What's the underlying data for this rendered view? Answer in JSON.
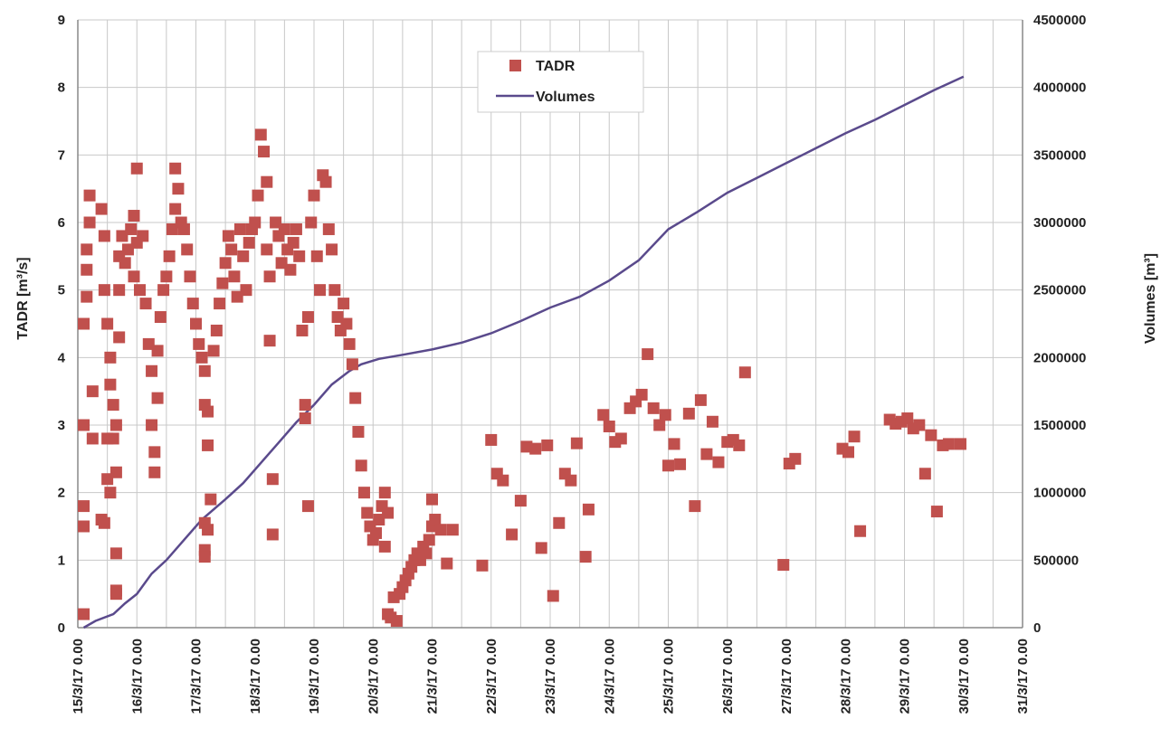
{
  "chart_data": {
    "type": "scatter+line",
    "x_axis": {
      "ticks": [
        "15/3/17 0.00",
        "16/3/17 0.00",
        "17/3/17 0.00",
        "18/3/17 0.00",
        "19/3/17 0.00",
        "20/3/17 0.00",
        "21/3/17 0.00",
        "22/3/17 0.00",
        "23/3/17 0.00",
        "24/3/17 0.00",
        "25/3/17 0.00",
        "26/3/17 0.00",
        "27/3/17 0.00",
        "28/3/17 0.00",
        "29/3/17 0.00",
        "30/3/17 0.00",
        "31/3/17 0.00"
      ],
      "unit": "days",
      "range": [
        0,
        16
      ]
    },
    "y_left": {
      "label": "TADR [m³/s]",
      "range": [
        0,
        9
      ],
      "ticks": [
        "0",
        "1",
        "2",
        "3",
        "4",
        "5",
        "6",
        "7",
        "8",
        "9"
      ]
    },
    "y_right": {
      "label": "Volumes [m³]",
      "range": [
        0,
        4500000
      ],
      "ticks": [
        "0",
        "500000",
        "1000000",
        "1500000",
        "2000000",
        "2500000",
        "3000000",
        "3500000",
        "4000000",
        "4500000"
      ]
    },
    "grid": true,
    "legend": {
      "placement": "top-center",
      "entries": [
        "TADR",
        "Volumes"
      ]
    },
    "colors": {
      "tadr": "#c0504d",
      "volumes": "#5a4a8c",
      "grid": "#c8c8c8"
    },
    "series": [
      {
        "name": "TADR",
        "kind": "scatter",
        "axis": "left",
        "points": [
          [
            0.1,
            0.2
          ],
          [
            0.1,
            1.5
          ],
          [
            0.1,
            1.8
          ],
          [
            0.1,
            3.0
          ],
          [
            0.1,
            4.5
          ],
          [
            0.15,
            4.9
          ],
          [
            0.15,
            5.3
          ],
          [
            0.15,
            5.6
          ],
          [
            0.2,
            6.0
          ],
          [
            0.2,
            6.4
          ],
          [
            0.25,
            3.5
          ],
          [
            0.25,
            2.8
          ],
          [
            0.4,
            1.6
          ],
          [
            0.45,
            1.55
          ],
          [
            0.4,
            6.2
          ],
          [
            0.45,
            5.8
          ],
          [
            0.45,
            5.0
          ],
          [
            0.5,
            4.5
          ],
          [
            0.5,
            2.8
          ],
          [
            0.5,
            2.2
          ],
          [
            0.55,
            3.6
          ],
          [
            0.55,
            4.0
          ],
          [
            0.55,
            2.0
          ],
          [
            0.6,
            2.8
          ],
          [
            0.6,
            3.3
          ],
          [
            0.65,
            3.0
          ],
          [
            0.65,
            2.3
          ],
          [
            0.65,
            1.1
          ],
          [
            0.65,
            0.55
          ],
          [
            0.65,
            0.5
          ],
          [
            0.7,
            4.3
          ],
          [
            0.7,
            5.0
          ],
          [
            0.7,
            5.5
          ],
          [
            0.75,
            5.8
          ],
          [
            0.8,
            5.4
          ],
          [
            0.85,
            5.6
          ],
          [
            0.9,
            5.9
          ],
          [
            0.95,
            5.2
          ],
          [
            0.95,
            6.1
          ],
          [
            1.0,
            6.8
          ],
          [
            1.0,
            5.7
          ],
          [
            1.05,
            5.0
          ],
          [
            1.1,
            5.8
          ],
          [
            1.15,
            4.8
          ],
          [
            1.2,
            4.2
          ],
          [
            1.25,
            3.8
          ],
          [
            1.25,
            3.0
          ],
          [
            1.3,
            2.6
          ],
          [
            1.3,
            2.3
          ],
          [
            1.35,
            3.4
          ],
          [
            1.35,
            4.1
          ],
          [
            1.4,
            4.6
          ],
          [
            1.45,
            5.0
          ],
          [
            1.5,
            5.2
          ],
          [
            1.55,
            5.5
          ],
          [
            1.6,
            5.9
          ],
          [
            1.65,
            6.2
          ],
          [
            1.65,
            6.8
          ],
          [
            1.7,
            6.5
          ],
          [
            1.75,
            6.0
          ],
          [
            1.8,
            5.9
          ],
          [
            1.85,
            5.6
          ],
          [
            1.9,
            5.2
          ],
          [
            1.95,
            4.8
          ],
          [
            2.0,
            4.5
          ],
          [
            2.05,
            4.2
          ],
          [
            2.1,
            4.0
          ],
          [
            2.15,
            3.8
          ],
          [
            2.15,
            3.3
          ],
          [
            2.2,
            3.2
          ],
          [
            2.2,
            2.7
          ],
          [
            2.15,
            1.55
          ],
          [
            2.2,
            1.45
          ],
          [
            2.15,
            1.15
          ],
          [
            2.15,
            1.05
          ],
          [
            2.25,
            1.9
          ],
          [
            2.3,
            4.1
          ],
          [
            2.35,
            4.4
          ],
          [
            2.4,
            4.8
          ],
          [
            2.45,
            5.1
          ],
          [
            2.5,
            5.4
          ],
          [
            2.55,
            5.8
          ],
          [
            2.6,
            5.6
          ],
          [
            2.65,
            5.2
          ],
          [
            2.7,
            4.9
          ],
          [
            2.75,
            5.9
          ],
          [
            2.8,
            5.5
          ],
          [
            2.85,
            5.0
          ],
          [
            2.9,
            5.7
          ],
          [
            2.95,
            5.9
          ],
          [
            3.0,
            6.0
          ],
          [
            3.05,
            6.4
          ],
          [
            3.1,
            7.3
          ],
          [
            3.15,
            7.05
          ],
          [
            3.2,
            6.6
          ],
          [
            3.2,
            5.6
          ],
          [
            3.25,
            5.2
          ],
          [
            3.25,
            4.25
          ],
          [
            3.3,
            2.2
          ],
          [
            3.3,
            1.38
          ],
          [
            3.35,
            6.0
          ],
          [
            3.4,
            5.8
          ],
          [
            3.45,
            5.4
          ],
          [
            3.5,
            5.9
          ],
          [
            3.55,
            5.6
          ],
          [
            3.6,
            5.3
          ],
          [
            3.65,
            5.7
          ],
          [
            3.7,
            5.9
          ],
          [
            3.75,
            5.5
          ],
          [
            3.8,
            4.4
          ],
          [
            3.85,
            3.3
          ],
          [
            3.85,
            3.1
          ],
          [
            3.9,
            1.8
          ],
          [
            3.9,
            4.6
          ],
          [
            3.95,
            6.0
          ],
          [
            4.0,
            6.4
          ],
          [
            4.05,
            5.5
          ],
          [
            4.1,
            5.0
          ],
          [
            4.15,
            6.7
          ],
          [
            4.2,
            6.6
          ],
          [
            4.25,
            5.9
          ],
          [
            4.3,
            5.6
          ],
          [
            4.35,
            5.0
          ],
          [
            4.4,
            4.6
          ],
          [
            4.45,
            4.4
          ],
          [
            4.5,
            4.8
          ],
          [
            4.55,
            4.5
          ],
          [
            4.6,
            4.2
          ],
          [
            4.65,
            3.9
          ],
          [
            4.7,
            3.4
          ],
          [
            4.75,
            2.9
          ],
          [
            4.8,
            2.4
          ],
          [
            4.85,
            2.0
          ],
          [
            4.9,
            1.7
          ],
          [
            4.95,
            1.5
          ],
          [
            5.0,
            1.3
          ],
          [
            5.05,
            1.4
          ],
          [
            5.1,
            1.6
          ],
          [
            5.15,
            1.8
          ],
          [
            5.2,
            2.0
          ],
          [
            5.25,
            1.7
          ],
          [
            5.2,
            1.2
          ],
          [
            5.25,
            0.2
          ],
          [
            5.3,
            0.15
          ],
          [
            5.35,
            0.45
          ],
          [
            5.4,
            0.1
          ],
          [
            5.45,
            0.5
          ],
          [
            5.5,
            0.6
          ],
          [
            5.55,
            0.7
          ],
          [
            5.6,
            0.8
          ],
          [
            5.65,
            0.9
          ],
          [
            5.7,
            1.0
          ],
          [
            5.75,
            1.1
          ],
          [
            5.8,
            1.0
          ],
          [
            5.85,
            1.2
          ],
          [
            5.9,
            1.1
          ],
          [
            5.95,
            1.3
          ],
          [
            6.0,
            1.5
          ],
          [
            6.0,
            1.9
          ],
          [
            6.05,
            1.6
          ],
          [
            6.15,
            1.45
          ],
          [
            6.25,
            0.95
          ],
          [
            6.35,
            1.45
          ],
          [
            6.85,
            0.92
          ],
          [
            7.0,
            2.78
          ],
          [
            7.1,
            2.28
          ],
          [
            7.2,
            2.18
          ],
          [
            7.35,
            1.38
          ],
          [
            7.5,
            1.88
          ],
          [
            7.6,
            2.68
          ],
          [
            7.75,
            2.65
          ],
          [
            7.85,
            1.18
          ],
          [
            7.95,
            2.7
          ],
          [
            8.05,
            0.47
          ],
          [
            8.15,
            1.55
          ],
          [
            8.25,
            2.28
          ],
          [
            8.35,
            2.18
          ],
          [
            8.45,
            2.73
          ],
          [
            8.6,
            1.05
          ],
          [
            8.65,
            1.75
          ],
          [
            8.9,
            3.15
          ],
          [
            9.0,
            2.98
          ],
          [
            9.1,
            2.75
          ],
          [
            9.2,
            2.8
          ],
          [
            9.35,
            3.25
          ],
          [
            9.45,
            3.35
          ],
          [
            9.55,
            3.45
          ],
          [
            9.65,
            4.05
          ],
          [
            9.75,
            3.25
          ],
          [
            9.85,
            3.0
          ],
          [
            9.95,
            3.15
          ],
          [
            10.0,
            2.4
          ],
          [
            10.1,
            2.72
          ],
          [
            10.2,
            2.42
          ],
          [
            10.35,
            3.17
          ],
          [
            10.45,
            1.8
          ],
          [
            10.55,
            3.37
          ],
          [
            10.65,
            2.57
          ],
          [
            10.75,
            3.05
          ],
          [
            10.85,
            2.45
          ],
          [
            11.0,
            2.75
          ],
          [
            11.1,
            2.78
          ],
          [
            11.2,
            2.7
          ],
          [
            11.3,
            3.78
          ],
          [
            11.95,
            0.93
          ],
          [
            12.05,
            2.43
          ],
          [
            12.15,
            2.5
          ],
          [
            12.95,
            2.65
          ],
          [
            13.05,
            2.6
          ],
          [
            13.15,
            2.83
          ],
          [
            13.25,
            1.43
          ],
          [
            13.75,
            3.08
          ],
          [
            13.85,
            3.02
          ],
          [
            13.95,
            3.05
          ],
          [
            14.05,
            3.1
          ],
          [
            14.15,
            2.95
          ],
          [
            14.25,
            3.0
          ],
          [
            14.35,
            2.28
          ],
          [
            14.45,
            2.85
          ],
          [
            14.55,
            1.72
          ],
          [
            14.65,
            2.7
          ],
          [
            14.75,
            2.72
          ],
          [
            14.95,
            2.72
          ]
        ]
      },
      {
        "name": "Volumes",
        "kind": "line",
        "axis": "right",
        "points": [
          [
            0.1,
            0
          ],
          [
            0.3,
            50000
          ],
          [
            0.6,
            100000
          ],
          [
            0.8,
            180000
          ],
          [
            1.0,
            250000
          ],
          [
            1.25,
            400000
          ],
          [
            1.5,
            500000
          ],
          [
            1.8,
            650000
          ],
          [
            2.1,
            800000
          ],
          [
            2.5,
            950000
          ],
          [
            2.8,
            1070000
          ],
          [
            3.1,
            1220000
          ],
          [
            3.4,
            1370000
          ],
          [
            3.7,
            1520000
          ],
          [
            4.0,
            1650000
          ],
          [
            4.3,
            1800000
          ],
          [
            4.6,
            1900000
          ],
          [
            4.8,
            1950000
          ],
          [
            5.1,
            1990000
          ],
          [
            5.5,
            2020000
          ],
          [
            6.0,
            2060000
          ],
          [
            6.5,
            2110000
          ],
          [
            7.0,
            2180000
          ],
          [
            7.5,
            2270000
          ],
          [
            8.0,
            2370000
          ],
          [
            8.5,
            2450000
          ],
          [
            9.0,
            2570000
          ],
          [
            9.5,
            2720000
          ],
          [
            10.0,
            2950000
          ],
          [
            10.5,
            3080000
          ],
          [
            11.0,
            3220000
          ],
          [
            11.5,
            3330000
          ],
          [
            12.0,
            3440000
          ],
          [
            12.5,
            3550000
          ],
          [
            13.0,
            3660000
          ],
          [
            13.5,
            3760000
          ],
          [
            14.0,
            3870000
          ],
          [
            14.5,
            3980000
          ],
          [
            15.0,
            4080000
          ]
        ]
      }
    ]
  }
}
